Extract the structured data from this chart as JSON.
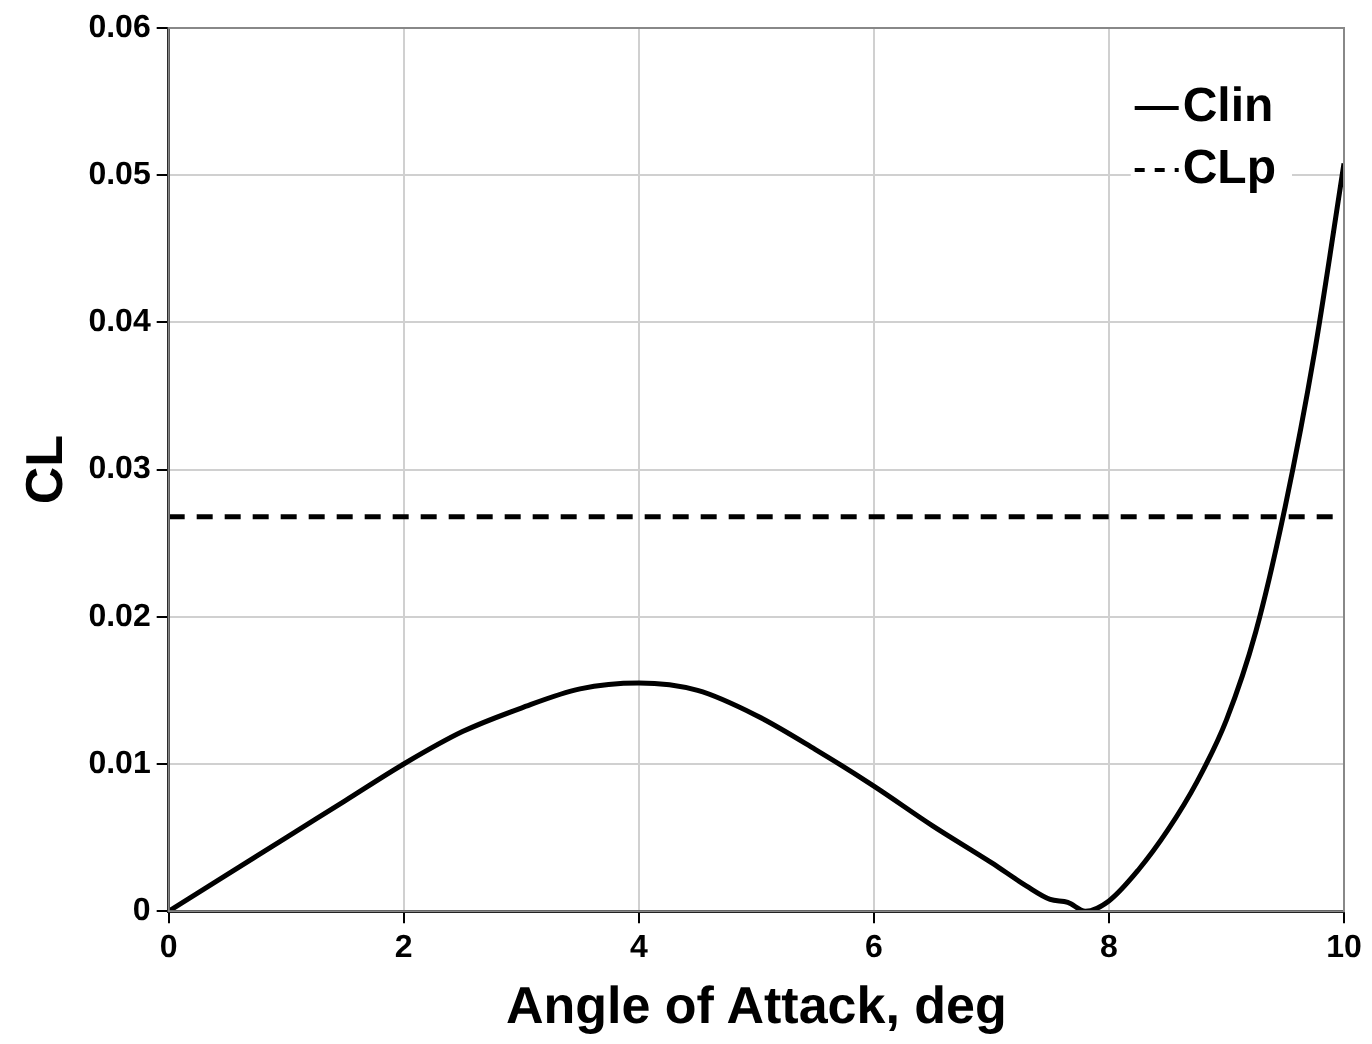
{
  "chart_data": {
    "type": "line",
    "xlabel": "Angle of Attack, deg",
    "ylabel": "CL",
    "xlim": [
      0,
      10
    ],
    "xticks": [
      0,
      2,
      4,
      6,
      8,
      10
    ],
    "ylim": [
      0,
      0.06
    ],
    "yticks": [
      0,
      0.01,
      0.02,
      0.03,
      0.04,
      0.05,
      0.06
    ],
    "grid": true,
    "legend": "top right",
    "marker": "none",
    "series": [
      {
        "name": "Clin",
        "color": "#000000",
        "line_style": "solid",
        "x": [
          0,
          0.5,
          1,
          1.5,
          2,
          2.5,
          3,
          3.5,
          4,
          4.5,
          5,
          5.5,
          6,
          6.5,
          7,
          7.3,
          7.5,
          7.65,
          7.8,
          8,
          8.25,
          8.5,
          8.75,
          9,
          9.25,
          9.5,
          9.75,
          10
        ],
        "values": [
          0,
          0.0025,
          0.005,
          0.0075,
          0.01,
          0.0122,
          0.0138,
          0.0151,
          0.0155,
          0.015,
          0.0133,
          0.011,
          0.0085,
          0.0058,
          0.0033,
          0.0017,
          0.0008,
          0.0006,
          0,
          0.0007,
          0.0028,
          0.0055,
          0.0088,
          0.013,
          0.019,
          0.0275,
          0.038,
          0.0508
        ]
      },
      {
        "name": "CLp",
        "color": "#000000",
        "line_style": "dashed",
        "x": [
          0,
          10
        ],
        "values": [
          0.0268,
          0.0268
        ]
      }
    ]
  }
}
